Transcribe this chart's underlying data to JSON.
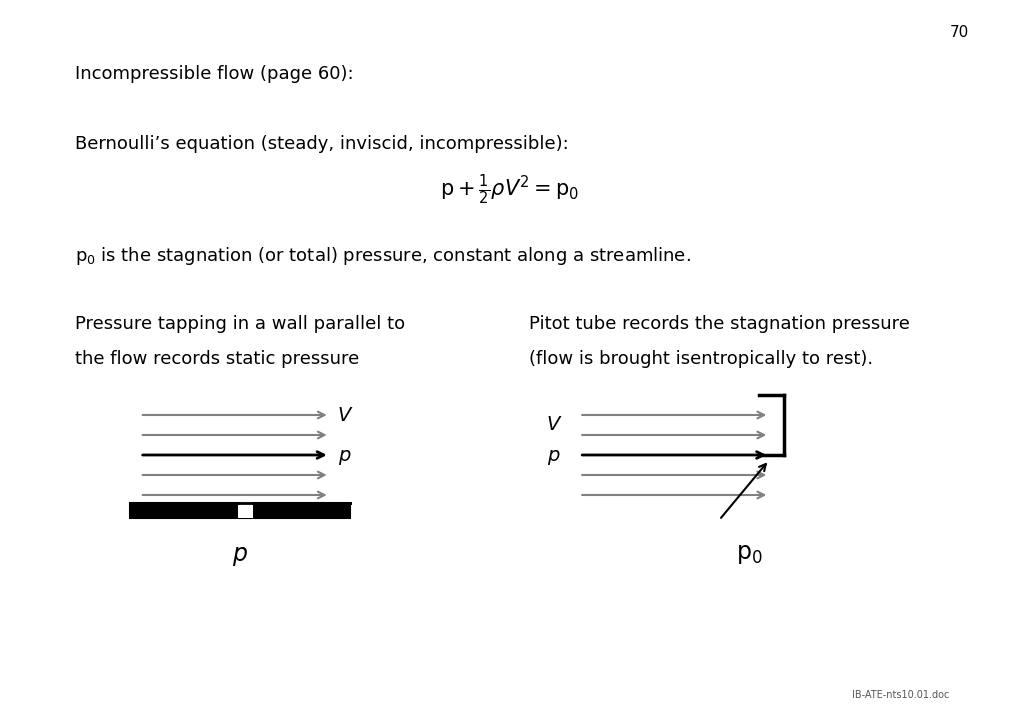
{
  "page_number": "70",
  "title_line1": "Incompressible flow (page 60):",
  "bernoulli_label": "Bernoulli’s equation (steady, inviscid, incompressible):",
  "equation": "p + ½ρV² = p₀",
  "stagnation_text": "p₀ is the stagnation (or total) pressure, constant along a streamline.",
  "left_title1": "Pressure tapping in a wall parallel to",
  "left_title2": "the flow records static pressure",
  "right_title1": "Pitot tube records the stagnation pressure",
  "right_title2": "(flow is brought isentropically to rest).",
  "footer": "IB-ATE-nts10.01.doc",
  "bg_color": "#ffffff",
  "text_color": "#000000"
}
